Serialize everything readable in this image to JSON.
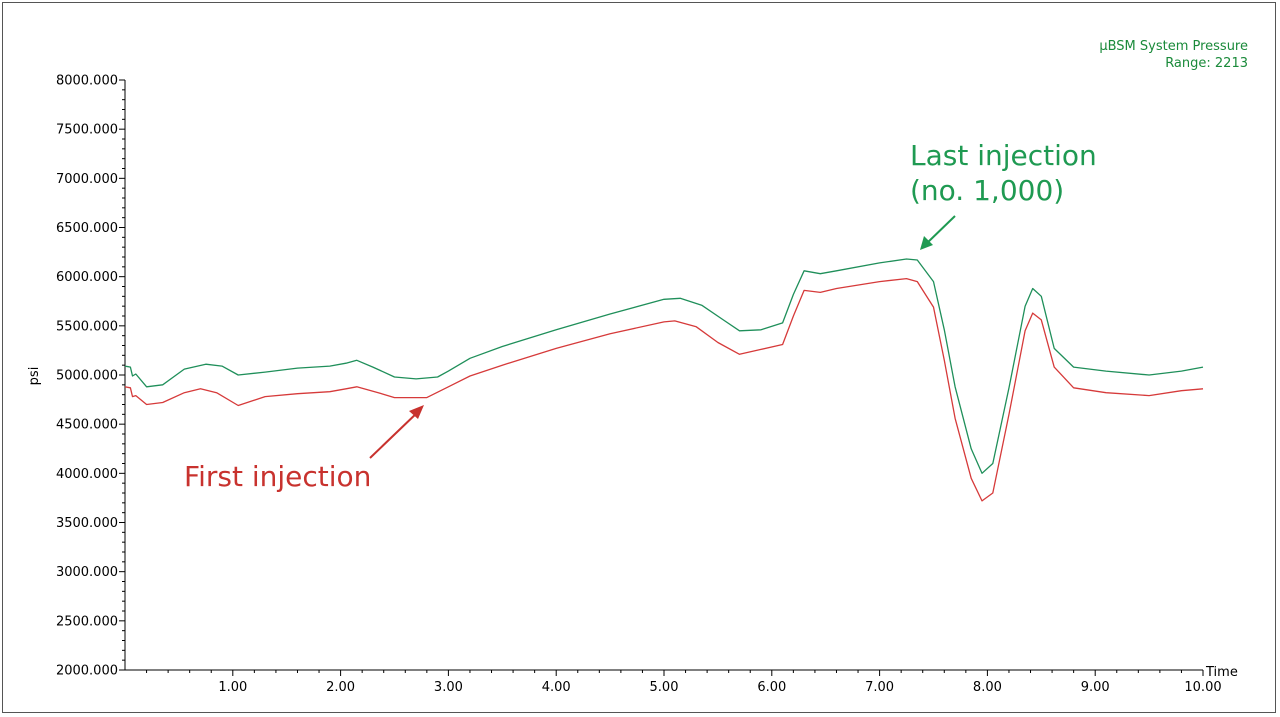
{
  "chart_data": {
    "type": "line",
    "legend": {
      "title": "µBSM System Pressure",
      "range": "Range: 2213",
      "color": "#1a8a3a"
    },
    "xlabel": "Time",
    "ylabel": "psi",
    "xlim": [
      0,
      10
    ],
    "ylim": [
      2000,
      8000
    ],
    "x_ticks": [
      "1.00",
      "2.00",
      "3.00",
      "4.00",
      "5.00",
      "6.00",
      "7.00",
      "8.00",
      "9.00",
      "10.00"
    ],
    "y_ticks": [
      "2000.000",
      "2500.000",
      "3000.000",
      "3500.000",
      "4000.000",
      "4500.000",
      "5000.000",
      "5500.000",
      "6000.000",
      "6500.000",
      "7000.000",
      "7500.000",
      "8000.000"
    ],
    "series": [
      {
        "color": "#1f8f5a",
        "points": [
          [
            0,
            5090
          ],
          [
            0.05,
            5080
          ],
          [
            0.07,
            4990
          ],
          [
            0.1,
            5010
          ],
          [
            0.2,
            4880
          ],
          [
            0.35,
            4900
          ],
          [
            0.55,
            5060
          ],
          [
            0.75,
            5110
          ],
          [
            0.9,
            5090
          ],
          [
            1.05,
            5000
          ],
          [
            1.3,
            5030
          ],
          [
            1.6,
            5070
          ],
          [
            1.9,
            5090
          ],
          [
            2.05,
            5120
          ],
          [
            2.15,
            5150
          ],
          [
            2.3,
            5080
          ],
          [
            2.5,
            4980
          ],
          [
            2.7,
            4960
          ],
          [
            2.9,
            4980
          ],
          [
            3.0,
            5040
          ],
          [
            3.2,
            5170
          ],
          [
            3.5,
            5290
          ],
          [
            4.0,
            5460
          ],
          [
            4.5,
            5620
          ],
          [
            5.0,
            5770
          ],
          [
            5.15,
            5780
          ],
          [
            5.35,
            5710
          ],
          [
            5.55,
            5560
          ],
          [
            5.7,
            5450
          ],
          [
            5.9,
            5460
          ],
          [
            6.1,
            5530
          ],
          [
            6.2,
            5820
          ],
          [
            6.3,
            6060
          ],
          [
            6.45,
            6030
          ],
          [
            6.6,
            6060
          ],
          [
            7.0,
            6140
          ],
          [
            7.25,
            6180
          ],
          [
            7.35,
            6170
          ],
          [
            7.5,
            5950
          ],
          [
            7.6,
            5460
          ],
          [
            7.7,
            4880
          ],
          [
            7.85,
            4250
          ],
          [
            7.95,
            4000
          ],
          [
            8.05,
            4100
          ],
          [
            8.2,
            4870
          ],
          [
            8.35,
            5700
          ],
          [
            8.42,
            5880
          ],
          [
            8.5,
            5800
          ],
          [
            8.62,
            5270
          ],
          [
            8.8,
            5080
          ],
          [
            9.1,
            5040
          ],
          [
            9.5,
            5000
          ],
          [
            9.8,
            5040
          ],
          [
            10.0,
            5080
          ]
        ]
      },
      {
        "color": "#d63a3a",
        "points": [
          [
            0,
            4880
          ],
          [
            0.05,
            4870
          ],
          [
            0.07,
            4780
          ],
          [
            0.1,
            4790
          ],
          [
            0.2,
            4700
          ],
          [
            0.35,
            4720
          ],
          [
            0.55,
            4820
          ],
          [
            0.7,
            4860
          ],
          [
            0.85,
            4820
          ],
          [
            1.05,
            4690
          ],
          [
            1.3,
            4780
          ],
          [
            1.6,
            4810
          ],
          [
            1.9,
            4830
          ],
          [
            2.05,
            4860
          ],
          [
            2.15,
            4880
          ],
          [
            2.35,
            4820
          ],
          [
            2.5,
            4770
          ],
          [
            2.8,
            4770
          ],
          [
            3.0,
            4880
          ],
          [
            3.2,
            4990
          ],
          [
            3.5,
            5100
          ],
          [
            4.0,
            5270
          ],
          [
            4.5,
            5420
          ],
          [
            5.0,
            5540
          ],
          [
            5.1,
            5550
          ],
          [
            5.3,
            5490
          ],
          [
            5.5,
            5330
          ],
          [
            5.7,
            5210
          ],
          [
            5.9,
            5260
          ],
          [
            6.1,
            5310
          ],
          [
            6.2,
            5600
          ],
          [
            6.3,
            5860
          ],
          [
            6.45,
            5840
          ],
          [
            6.6,
            5880
          ],
          [
            7.0,
            5950
          ],
          [
            7.25,
            5980
          ],
          [
            7.35,
            5950
          ],
          [
            7.5,
            5690
          ],
          [
            7.6,
            5150
          ],
          [
            7.7,
            4560
          ],
          [
            7.85,
            3950
          ],
          [
            7.95,
            3720
          ],
          [
            8.05,
            3800
          ],
          [
            8.2,
            4600
          ],
          [
            8.35,
            5450
          ],
          [
            8.42,
            5630
          ],
          [
            8.5,
            5560
          ],
          [
            8.62,
            5080
          ],
          [
            8.8,
            4870
          ],
          [
            9.1,
            4820
          ],
          [
            9.5,
            4790
          ],
          [
            9.8,
            4840
          ],
          [
            10.0,
            4860
          ]
        ]
      }
    ],
    "annotations": {
      "first": {
        "text": "First injection",
        "color": "#c8322e"
      },
      "last": {
        "line1": "Last injection",
        "line2": "(no. 1,000)",
        "color": "#1f9a52"
      }
    }
  }
}
